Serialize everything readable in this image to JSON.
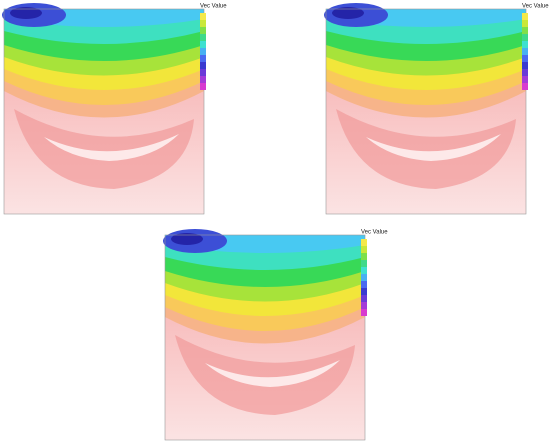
{
  "panels": [
    {
      "legend_title": "Vec Value"
    },
    {
      "legend_title": "Vec Value"
    },
    {
      "legend_title": "Vec Value"
    }
  ]
}
